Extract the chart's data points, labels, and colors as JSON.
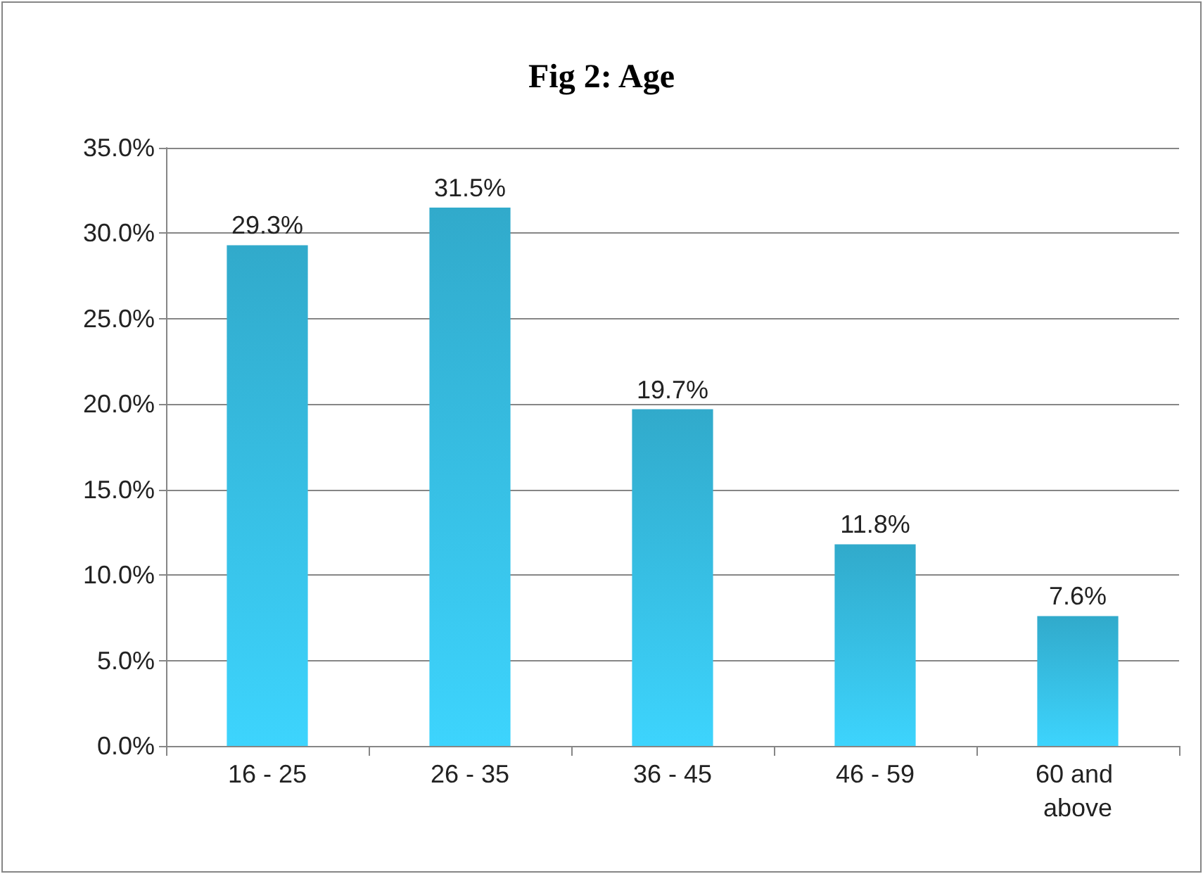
{
  "chart_data": {
    "type": "bar",
    "title": "Fig 2: Age",
    "categories": [
      "16 - 25",
      "26 - 35",
      "36 - 45",
      "46 - 59",
      "60 and above"
    ],
    "values": [
      29.3,
      31.5,
      19.7,
      11.8,
      7.6
    ],
    "value_labels": [
      "29.3%",
      "31.5%",
      "19.7%",
      "11.8%",
      "7.6%"
    ],
    "color": "#31aacb",
    "ylim": [
      0,
      35
    ],
    "yticks": [
      {
        "value": 0,
        "label": "0.0%"
      },
      {
        "value": 5,
        "label": "5.0%"
      },
      {
        "value": 10,
        "label": "10.0%"
      },
      {
        "value": 15,
        "label": "15.0%"
      },
      {
        "value": 20,
        "label": "20.0%"
      },
      {
        "value": 25,
        "label": "25.0%"
      },
      {
        "value": 30,
        "label": "30.0%"
      },
      {
        "value": 35,
        "label": "35.0%"
      }
    ],
    "grid": "y"
  }
}
